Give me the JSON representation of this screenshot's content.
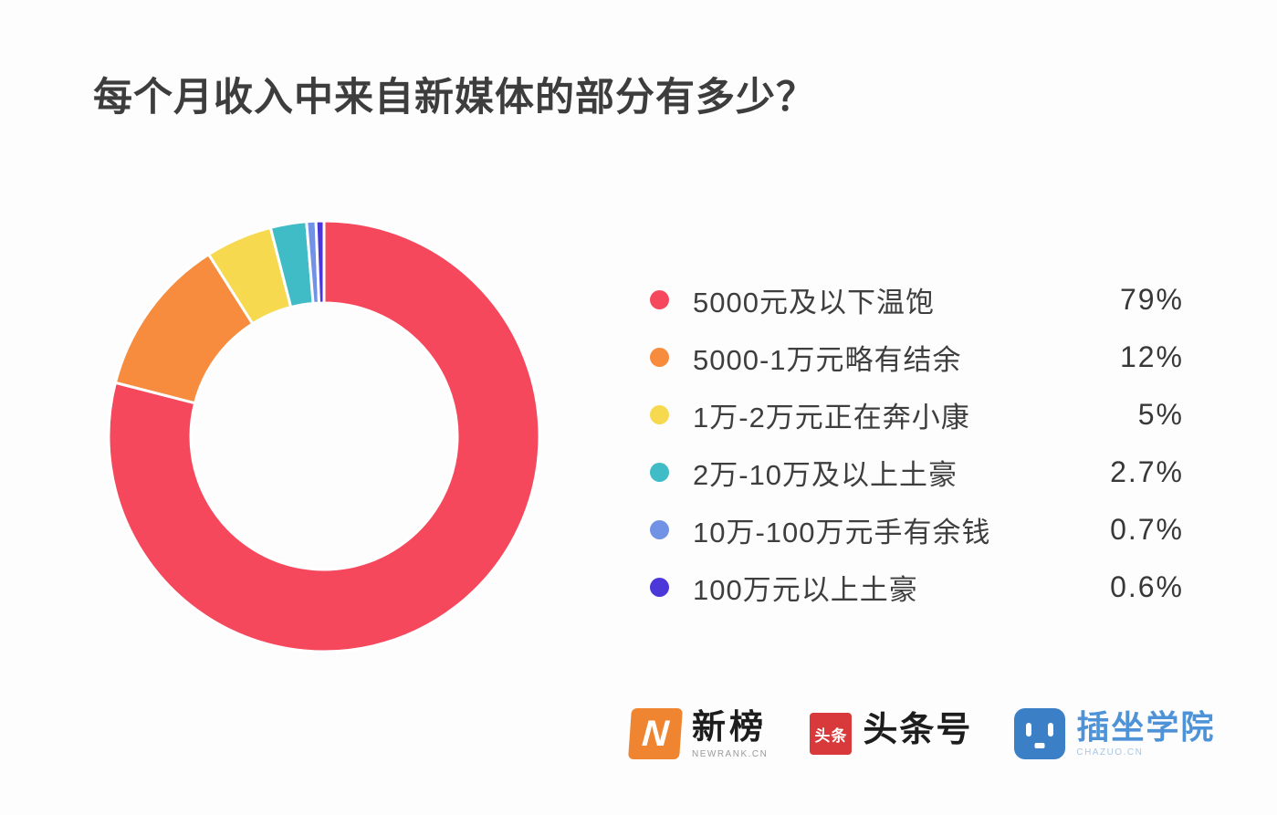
{
  "title": "每个月收入中来自新媒体的部分有多少？",
  "chart_data": {
    "type": "pie",
    "donut": true,
    "title": "每个月收入中来自新媒体的部分有多少？",
    "categories": [
      "5000元及以下温饱",
      "5000-1万元略有结余",
      "1万-2万元正在奔小康",
      "2万-10万及以上土豪",
      "10万-100万元手有余钱",
      "100万元以上土豪"
    ],
    "values": [
      79,
      12,
      5,
      2.7,
      0.7,
      0.6
    ],
    "value_labels": [
      "79%",
      "12%",
      "5%",
      "2.7%",
      "0.7%",
      "0.6%"
    ],
    "colors": [
      "#f6485c",
      "#f78c3e",
      "#f6d94f",
      "#3fbcc5",
      "#7292e6",
      "#4c38d9"
    ],
    "start_angle_deg": -90,
    "direction": "clockwise",
    "inner_radius_ratio": 0.62,
    "separator_color": "#ffffff",
    "legend_position": "right"
  },
  "legend": {
    "items": [
      {
        "label": "5000元及以下温饱",
        "value": "79%",
        "color": "#f6485c"
      },
      {
        "label": "5000-1万元略有结余",
        "value": "12%",
        "color": "#f78c3e"
      },
      {
        "label": "1万-2万元正在奔小康",
        "value": "5%",
        "color": "#f6d94f"
      },
      {
        "label": "2万-10万及以上土豪",
        "value": "2.7%",
        "color": "#3fbcc5"
      },
      {
        "label": "10万-100万元手有余钱",
        "value": "0.7%",
        "color": "#7292e6"
      },
      {
        "label": "100万元以上土豪",
        "value": "0.6%",
        "color": "#4c38d9"
      }
    ]
  },
  "footer": {
    "logos": [
      {
        "name": "newrank",
        "icon": "newrank-n-icon",
        "badge_text": "N",
        "badge_color": "#ef8530",
        "text": "新榜",
        "subtext": "NEWRANK.CN"
      },
      {
        "name": "toutiao",
        "icon": "toutiao-badge-icon",
        "badge_text": "头条",
        "badge_color": "#d8393a",
        "text": "头条号"
      },
      {
        "name": "chazuo",
        "icon": "chazuo-robot-icon",
        "badge_color": "#3b7fc6",
        "text": "插坐学院",
        "subtext": "CHAZUO.CN"
      }
    ]
  }
}
